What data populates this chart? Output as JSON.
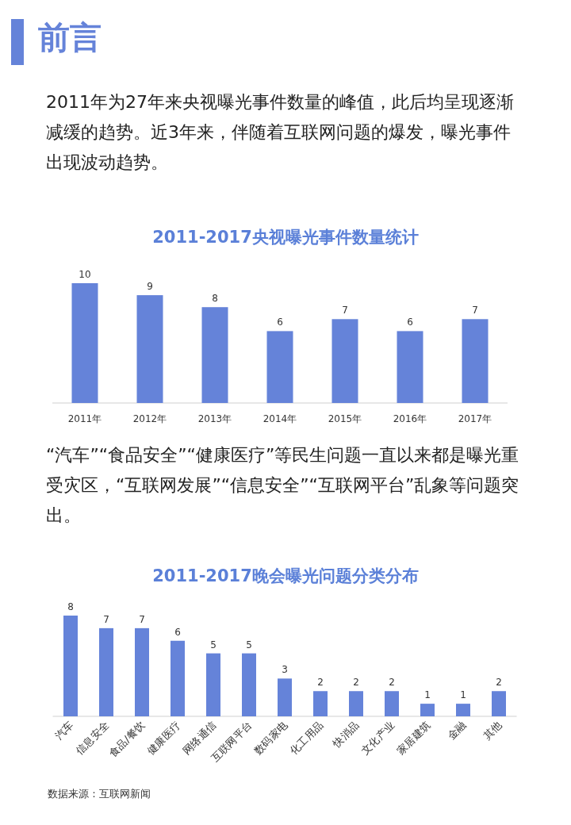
{
  "chart_data": [
    {
      "type": "other",
      "title": "前言",
      "annotations": [
        "2011年为27年来央视曝光事件数量的峰值，此后均呈现逐渐减缓的趋势。近3年来，伴随着互联网问题的爆发，曝光事件出现波动趋势。"
      ]
    },
    {
      "type": "bar",
      "title": "2011-2017央视曝光事件数量统计",
      "categories": [
        "2011年",
        "2012年",
        "2013年",
        "2014年",
        "2015年",
        "2016年",
        "2017年"
      ],
      "values": [
        10,
        9,
        8,
        6,
        7,
        6,
        7
      ],
      "color": "#6583d9",
      "data_labels": true
    },
    {
      "type": "other",
      "annotations": [
        "“汽车”“食品安全”“健康医疗”等民生问题一直以来都是曝光重受灾区，“互联网发展”“信息安全”“互联网平台”乱象等问题突出。"
      ]
    },
    {
      "type": "bar",
      "title": "2011-2017晚会曝光问题分类分布",
      "categories": [
        "汽车",
        "信息安全",
        "食品/餐饮",
        "健康医疗",
        "网络通信",
        "互联网平台",
        "数码家电",
        "化工用品",
        "快消品",
        "文化产业",
        "家居建筑",
        "金融",
        "其他"
      ],
      "values": [
        8,
        7,
        7,
        6,
        5,
        5,
        3,
        2,
        2,
        2,
        1,
        1,
        2
      ],
      "color": "#6583d9",
      "data_labels": true,
      "annotations": [
        "数据来源：互联网新闻"
      ]
    }
  ]
}
